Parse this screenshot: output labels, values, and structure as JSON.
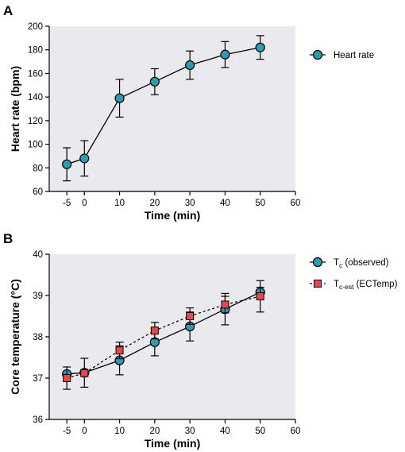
{
  "chart_data": [
    {
      "panel": "A",
      "type": "line",
      "title": "",
      "xlabel": "Time (min)",
      "ylabel": "Heart rate (bpm)",
      "xlim": [
        -10,
        60
      ],
      "ylim": [
        60,
        200
      ],
      "xticks": [
        -5,
        0,
        10,
        20,
        30,
        40,
        50,
        60
      ],
      "xtick_labels": [
        "-5",
        "0",
        "10",
        "20",
        "30",
        "40",
        "50",
        "60"
      ],
      "yticks": [
        60,
        80,
        100,
        120,
        140,
        160,
        180,
        200
      ],
      "ytick_labels": [
        "60",
        "80",
        "100",
        "120",
        "140",
        "160",
        "180",
        "200"
      ],
      "grid": false,
      "legend_position": "right",
      "series": [
        {
          "name": "Heart rate",
          "marker": "circle",
          "color": "#2a9db5",
          "line": "solid",
          "x": [
            -5,
            0,
            10,
            20,
            30,
            40,
            50
          ],
          "y": [
            83,
            88,
            139,
            153,
            167,
            176,
            182
          ],
          "err": [
            14,
            15,
            16,
            11,
            12,
            11,
            10
          ]
        }
      ]
    },
    {
      "panel": "B",
      "type": "line",
      "title": "",
      "xlabel": "Time (min)",
      "ylabel": "Core temperature (°C)",
      "xlim": [
        -10,
        60
      ],
      "ylim": [
        36,
        40
      ],
      "xticks": [
        -5,
        0,
        10,
        20,
        30,
        40,
        50,
        60
      ],
      "xtick_labels": [
        "-5",
        "0",
        "10",
        "20",
        "30",
        "40",
        "50",
        "60"
      ],
      "yticks": [
        36,
        37,
        38,
        39,
        40
      ],
      "ytick_labels": [
        "36",
        "37",
        "38",
        "39",
        "40"
      ],
      "grid": false,
      "legend_position": "right",
      "series": [
        {
          "name_base": "T",
          "name_sub": "c",
          "name_rest": " (observed)",
          "marker": "circle",
          "color": "#2a9db5",
          "line": "solid",
          "x": [
            -5,
            0,
            10,
            20,
            30,
            40,
            50
          ],
          "y": [
            37.1,
            37.13,
            37.43,
            37.87,
            38.25,
            38.67,
            39.08
          ],
          "err": [
            0,
            0.35,
            0.35,
            0.33,
            0.35,
            0.38,
            0.12
          ]
        },
        {
          "name_base": "T",
          "name_sub": "c-est",
          "name_rest": " (ECTemp)",
          "marker": "square",
          "color": "#e8474c",
          "line": "dashed",
          "x": [
            -5,
            0,
            10,
            20,
            30,
            40,
            50
          ],
          "y": [
            37.0,
            37.12,
            37.67,
            38.15,
            38.5,
            38.78,
            38.98
          ],
          "err": [
            0.27,
            0,
            0.2,
            0.2,
            0.2,
            0.2,
            0.38
          ]
        }
      ]
    }
  ]
}
